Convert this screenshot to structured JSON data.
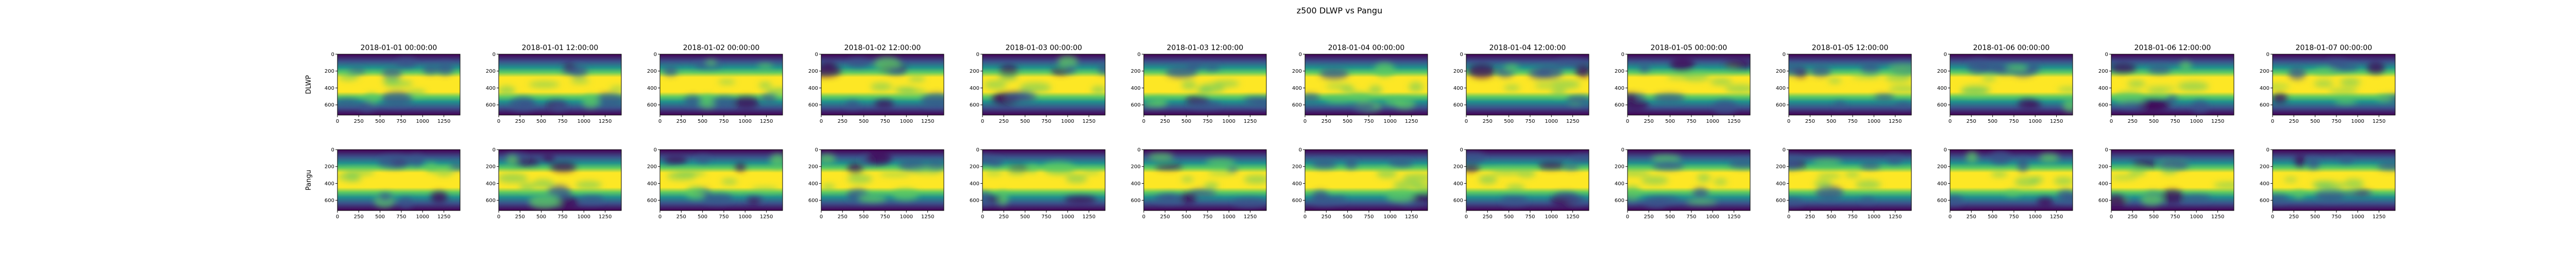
{
  "figure": {
    "title": "z500 DLWP vs Pangu"
  },
  "chart_data": {
    "type": "heatmap",
    "title": "z500 DLWP vs Pangu",
    "rows": [
      "DLWP",
      "Pangu"
    ],
    "columns": [
      "2018-01-01 00:00:00",
      "2018-01-01 12:00:00",
      "2018-01-02 00:00:00",
      "2018-01-02 12:00:00",
      "2018-01-03 00:00:00",
      "2018-01-03 12:00:00",
      "2018-01-04 00:00:00",
      "2018-01-04 12:00:00",
      "2018-01-05 00:00:00",
      "2018-01-05 12:00:00",
      "2018-01-06 00:00:00",
      "2018-01-06 12:00:00",
      "2018-01-07 00:00:00"
    ],
    "x_ticks": [
      0,
      250,
      500,
      750,
      1000,
      1250
    ],
    "y_ticks": [
      0,
      200,
      400,
      600
    ],
    "xlim": [
      0,
      1440
    ],
    "ylim": [
      721,
      0
    ],
    "colormap": "viridis",
    "colors": [
      "#440154",
      "#3b528b",
      "#21918c",
      "#5ec962",
      "#fde725"
    ],
    "grid": false,
    "legend": "none"
  }
}
